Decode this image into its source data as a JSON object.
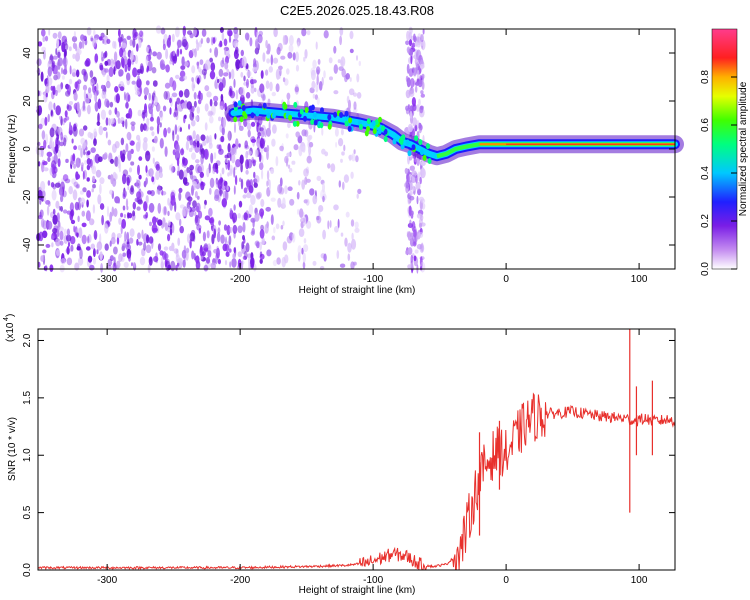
{
  "title": "C2E5.2026.025.18.43.R08",
  "colors": {
    "snr_line": "#e8302c",
    "axes": "#000000"
  },
  "chart_data": [
    {
      "type": "heatmap",
      "xlabel": "Height of straight line (km)",
      "ylabel": "Frequency (Hz)",
      "xlim": [
        -352,
        127
      ],
      "ylim": [
        -50,
        50
      ],
      "xticks": [
        -300,
        -200,
        -100,
        0,
        100
      ],
      "yticks": [
        -40,
        -20,
        0,
        20,
        40
      ],
      "colorbar": {
        "label": "Normalized spectral amplitude",
        "range": [
          0,
          1
        ],
        "ticks": [
          "0.0",
          "0.2",
          "0.4",
          "0.6",
          "0.8"
        ]
      },
      "ridge": {
        "x": [
          -205,
          -190,
          -170,
          -150,
          -130,
          -110,
          -95,
          -85,
          -78,
          -72,
          -65,
          -58,
          -52,
          -45,
          -38,
          -30,
          -20,
          -10,
          0,
          20,
          40,
          60,
          80,
          100,
          127
        ],
        "y": [
          15,
          16,
          15,
          14,
          13,
          11,
          9,
          6,
          3,
          2,
          0,
          -2,
          -3,
          -2,
          0,
          1,
          2,
          2,
          2,
          2,
          2,
          2,
          2,
          2,
          2
        ]
      },
      "noise_regions": [
        {
          "x": [
            -352,
            -180
          ],
          "level": "dense"
        },
        {
          "x": [
            -180,
            -110
          ],
          "level": "sparse"
        },
        {
          "x": [
            -75,
            -62
          ],
          "level": "band"
        }
      ]
    },
    {
      "type": "line",
      "xlabel": "Height of straight line (km)",
      "ylabel": "SNR (10 * v/v)",
      "scale_label": "(x10",
      "scale_exp": "4",
      "xlim": [
        -352,
        127
      ],
      "ylim": [
        0,
        2.1
      ],
      "xticks": [
        -300,
        -200,
        -100,
        0,
        100
      ],
      "yticks": [
        "0.0",
        "0.5",
        "1.0",
        "1.5",
        "2.0"
      ],
      "series": [
        {
          "x": [
            -352,
            -200,
            -150,
            -120,
            -105,
            -95,
            -85,
            -75,
            -65,
            -55,
            -45,
            -35,
            -30,
            -25,
            -20,
            -15,
            -10,
            -5,
            0,
            5,
            10,
            15,
            20,
            30,
            40,
            50,
            60,
            70,
            80,
            90,
            95,
            100,
            105,
            110,
            115,
            120,
            127
          ],
          "y": [
            0.02,
            0.02,
            0.03,
            0.04,
            0.06,
            0.1,
            0.14,
            0.12,
            0.05,
            0.03,
            0.05,
            0.15,
            0.35,
            0.6,
            0.8,
            0.92,
            1.0,
            1.05,
            1.0,
            1.1,
            1.2,
            1.28,
            1.33,
            1.36,
            1.37,
            1.38,
            1.36,
            1.34,
            1.33,
            1.32,
            1.3,
            1.31,
            1.32,
            1.3,
            1.3,
            1.31,
            1.3
          ],
          "spikes": [
            {
              "x": -20,
              "ymin": 0.3,
              "ymax": 1.2
            },
            {
              "x": -5,
              "ymin": 0.7,
              "ymax": 1.3
            },
            {
              "x": 93,
              "ymin": 0.5,
              "ymax": 2.1
            },
            {
              "x": 98,
              "ymin": 1.0,
              "ymax": 1.6
            },
            {
              "x": 110,
              "ymin": 1.0,
              "ymax": 1.65
            }
          ]
        }
      ]
    }
  ]
}
